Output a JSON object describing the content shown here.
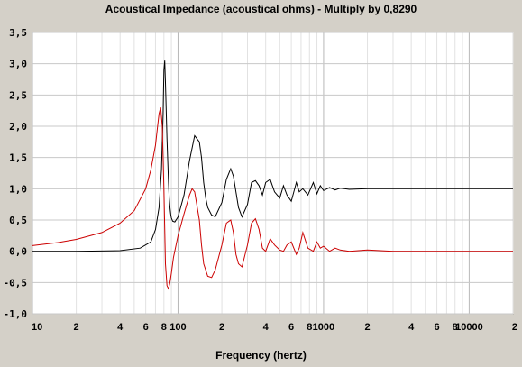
{
  "chart_data": {
    "type": "line",
    "title": "Acoustical Impedance (acoustical ohms) - Multiply by 0,8290",
    "xlabel": "Frequency (hertz)",
    "ylabel": "",
    "x_scale": "log",
    "xlim": [
      10,
      20000
    ],
    "ylim": [
      -1.0,
      3.5
    ],
    "y_ticks": [
      "3,5",
      "3,0",
      "2,5",
      "2,0",
      "1,5",
      "1,0",
      "0,5",
      "0,0",
      "-0,5",
      "-1,0"
    ],
    "x_ticks": [
      {
        "value": 10,
        "label": "10"
      },
      {
        "value": 20,
        "label": "2"
      },
      {
        "value": 40,
        "label": "4"
      },
      {
        "value": 60,
        "label": "6"
      },
      {
        "value": 80,
        "label": "8"
      },
      {
        "value": 100,
        "label": "100"
      },
      {
        "value": 200,
        "label": "2"
      },
      {
        "value": 400,
        "label": "4"
      },
      {
        "value": 600,
        "label": "6"
      },
      {
        "value": 800,
        "label": "8"
      },
      {
        "value": 1000,
        "label": "1000"
      },
      {
        "value": 2000,
        "label": "2"
      },
      {
        "value": 4000,
        "label": "4"
      },
      {
        "value": 6000,
        "label": "6"
      },
      {
        "value": 8000,
        "label": "8"
      },
      {
        "value": 10000,
        "label": "10000"
      },
      {
        "value": 20000,
        "label": "2"
      }
    ],
    "grid": true,
    "series": [
      {
        "color": "#000000",
        "x": [
          10,
          20,
          40,
          55,
          65,
          70,
          74,
          77,
          79,
          80,
          81,
          82,
          84,
          86,
          87,
          88,
          89,
          90,
          92,
          95,
          100,
          110,
          120,
          130,
          140,
          145,
          150,
          155,
          160,
          170,
          180,
          200,
          215,
          230,
          240,
          250,
          260,
          275,
          300,
          320,
          340,
          360,
          380,
          400,
          430,
          460,
          500,
          530,
          560,
          600,
          650,
          680,
          720,
          780,
          850,
          900,
          950,
          1000,
          1100,
          1200,
          1300,
          1500,
          2000,
          3000,
          5000,
          10000,
          20000
        ],
        "y": [
          0.0,
          0.0,
          0.01,
          0.05,
          0.15,
          0.35,
          0.7,
          1.3,
          2.2,
          2.9,
          3.05,
          2.7,
          1.8,
          1.1,
          0.85,
          0.7,
          0.6,
          0.53,
          0.48,
          0.47,
          0.55,
          0.9,
          1.45,
          1.85,
          1.75,
          1.5,
          1.1,
          0.85,
          0.7,
          0.58,
          0.55,
          0.78,
          1.15,
          1.32,
          1.2,
          0.95,
          0.7,
          0.55,
          0.75,
          1.1,
          1.13,
          1.05,
          0.9,
          1.1,
          1.15,
          0.95,
          0.85,
          1.05,
          0.9,
          0.8,
          1.1,
          0.95,
          1.0,
          0.9,
          1.1,
          0.92,
          1.05,
          0.97,
          1.02,
          0.98,
          1.01,
          0.99,
          1.0,
          1.0,
          1.0,
          1.0,
          1.0
        ]
      },
      {
        "color": "#cc0000",
        "x": [
          10,
          15,
          20,
          30,
          40,
          50,
          60,
          65,
          70,
          72,
          74,
          76,
          78,
          80,
          82,
          84,
          86,
          88,
          90,
          93,
          97,
          100,
          110,
          120,
          125,
          130,
          140,
          145,
          150,
          160,
          170,
          180,
          200,
          215,
          230,
          240,
          250,
          260,
          275,
          300,
          320,
          340,
          360,
          380,
          400,
          430,
          460,
          500,
          530,
          560,
          600,
          650,
          680,
          720,
          780,
          850,
          900,
          950,
          1000,
          1100,
          1200,
          1300,
          1500,
          2000,
          3000,
          5000,
          10000,
          20000
        ],
        "y": [
          0.09,
          0.14,
          0.19,
          0.3,
          0.45,
          0.65,
          1.0,
          1.3,
          1.7,
          1.95,
          2.2,
          2.3,
          2.0,
          1.0,
          -0.2,
          -0.55,
          -0.6,
          -0.5,
          -0.35,
          -0.1,
          0.1,
          0.25,
          0.6,
          0.9,
          1.0,
          0.95,
          0.5,
          0.1,
          -0.2,
          -0.4,
          -0.42,
          -0.3,
          0.1,
          0.45,
          0.5,
          0.3,
          -0.05,
          -0.2,
          -0.25,
          0.1,
          0.45,
          0.52,
          0.35,
          0.05,
          0.0,
          0.2,
          0.1,
          0.02,
          0.0,
          0.1,
          0.15,
          -0.05,
          0.05,
          0.3,
          0.05,
          0.0,
          0.15,
          0.05,
          0.08,
          0.0,
          0.05,
          0.02,
          0.0,
          0.02,
          0.0,
          0.0,
          0.0,
          0.0
        ]
      }
    ]
  }
}
